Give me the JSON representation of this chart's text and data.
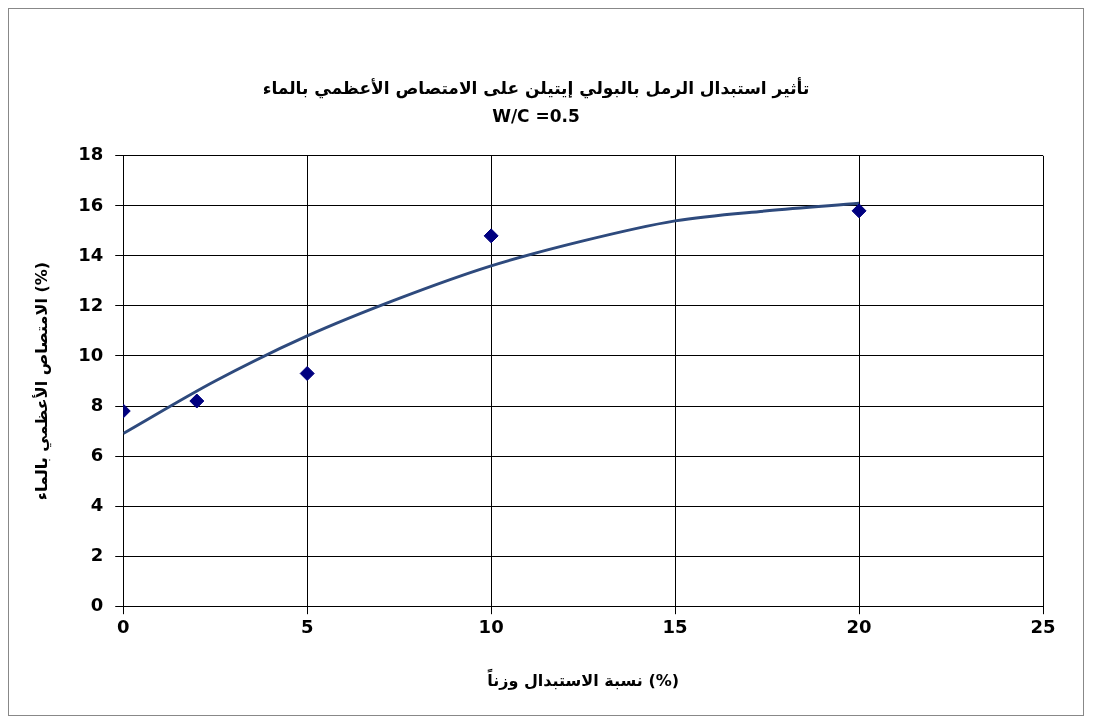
{
  "chart_data": {
    "type": "scatter",
    "title": "تأثير استبدال الرمل بالبولي إيتيلن على الامتصاص الأعظمي بالماء",
    "subtitle": "W/C =0.5",
    "xlabel": "نسبة الاستبدال وزناً (%)",
    "ylabel": "الامتصاص الأعظمي بالماء (%)",
    "x": [
      0,
      2,
      5,
      10,
      20
    ],
    "series": [
      {
        "type": "scatter",
        "color": "#000080",
        "marker": "diamond",
        "values": [
          7.8,
          8.2,
          9.3,
          14.8,
          15.8
        ]
      },
      {
        "type": "line",
        "color": "#2e4a7d",
        "marker": "none",
        "line_style": "solid",
        "x": [
          0,
          2.5,
          5,
          7.5,
          10,
          12.5,
          15,
          17.5,
          20
        ],
        "values": [
          6.9,
          9.0,
          10.8,
          12.3,
          13.6,
          14.6,
          15.4,
          15.8,
          16.1
        ]
      }
    ],
    "xlim": [
      0,
      25
    ],
    "xticks": [
      0,
      5,
      10,
      15,
      20,
      25
    ],
    "ylim": [
      0,
      18
    ],
    "yticks": [
      0,
      2,
      4,
      6,
      8,
      10,
      12,
      14,
      16,
      18
    ],
    "grid": true,
    "legend": false
  }
}
